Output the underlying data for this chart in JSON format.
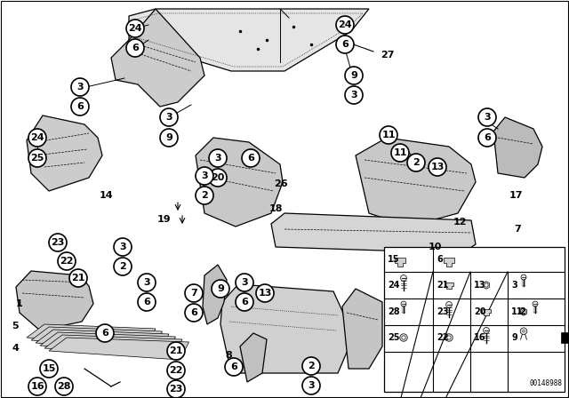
{
  "bg_color": "#ffffff",
  "part_number": "00148988",
  "circle_r": 10,
  "circle_lw": 1.2,
  "callout_fs": 8,
  "label_fs": 8,
  "line_color": "#000000",
  "gray_fill": "#d8d8d8",
  "dark_gray": "#aaaaaa",
  "hatch_color": "#888888"
}
